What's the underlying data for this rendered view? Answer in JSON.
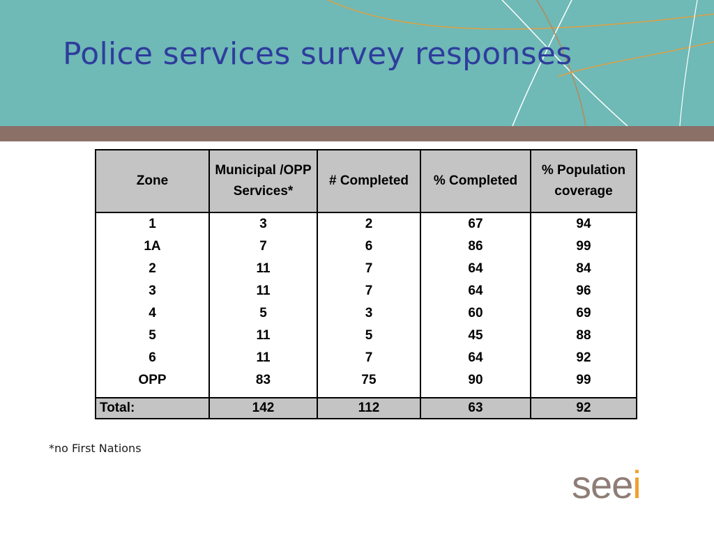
{
  "title": "Police services survey responses",
  "colors": {
    "header_band": "#6fb9b6",
    "divider_bar": "#8b7068",
    "title": "#2e3d9c",
    "table_header_fill": "#c4c4c4",
    "logo_gray": "#8e7d76",
    "logo_orange": "#f0a12c"
  },
  "table": {
    "headers": [
      "Zone",
      "Municipal /OPP Services*",
      "# Completed",
      "% Completed",
      "% Population coverage"
    ],
    "rows": [
      [
        "1",
        "3",
        "2",
        "67",
        "94"
      ],
      [
        "1A",
        "7",
        "6",
        "86",
        "99"
      ],
      [
        "2",
        "11",
        "7",
        "64",
        "84"
      ],
      [
        "3",
        "11",
        "7",
        "64",
        "96"
      ],
      [
        "4",
        "5",
        "3",
        "60",
        "69"
      ],
      [
        "5",
        "11",
        "5",
        "45",
        "88"
      ],
      [
        "6",
        "11",
        "7",
        "64",
        "92"
      ],
      [
        "OPP",
        "83",
        "75",
        "90",
        "99"
      ]
    ],
    "total": [
      "Total:",
      "142",
      "112",
      "63",
      "92"
    ]
  },
  "footnote": "*no First Nations",
  "logo": {
    "text": "seei"
  }
}
